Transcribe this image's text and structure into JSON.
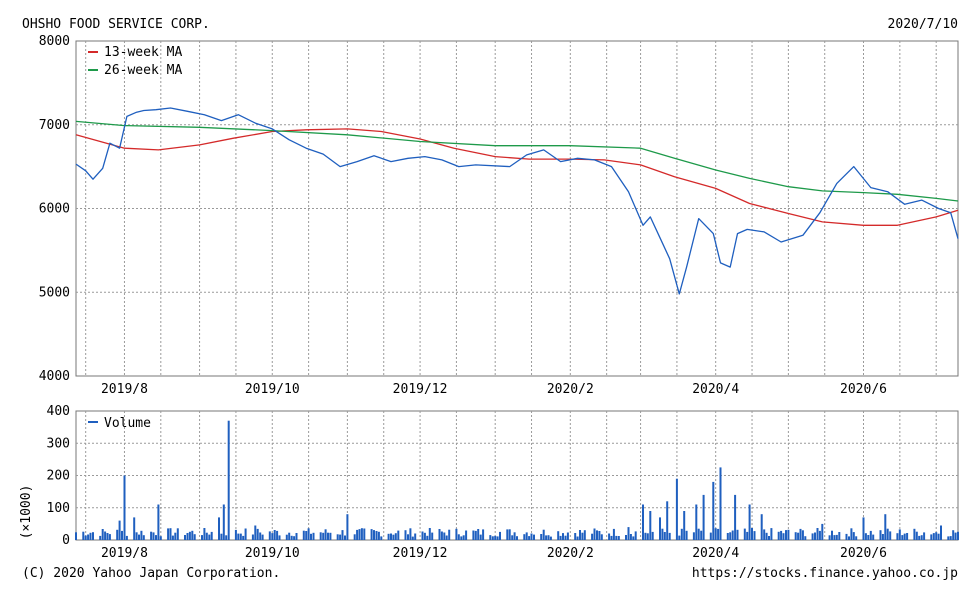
{
  "header": {
    "company": "OHSHO FOOD SERVICE CORP.",
    "date": "2020/7/10"
  },
  "footer": {
    "copyright": "(C) 2020 Yahoo Japan Corporation.",
    "url": "https://stocks.finance.yahoo.co.jp"
  },
  "colors": {
    "price": "#1f5fbf",
    "ma13": "#d42a2a",
    "ma26": "#1e9a4a",
    "volume": "#1f5fbf",
    "grid": "#9a9a9a"
  },
  "chart_data": [
    {
      "type": "line",
      "title": "OHSHO FOOD SERVICE CORP.",
      "ylim": [
        4000,
        8000
      ],
      "y_ticks": [
        "8000",
        "7000",
        "6000",
        "5000",
        "4000"
      ],
      "x_ticks": [
        "2019/8",
        "2019/10",
        "2019/12",
        "2020/2",
        "2020/4",
        "2020/6"
      ],
      "x_range": [
        "2019-07-12",
        "2020-07-10"
      ],
      "grid": true,
      "legend": "top-left",
      "series": [
        {
          "name": "13-week MA",
          "x": [
            "2019-07-12",
            "2019-08-01",
            "2019-08-15",
            "2019-09-01",
            "2019-09-15",
            "2019-10-01",
            "2019-10-15",
            "2019-11-01",
            "2019-11-15",
            "2019-12-01",
            "2019-12-15",
            "2020-01-01",
            "2020-01-15",
            "2020-02-01",
            "2020-02-15",
            "2020-03-01",
            "2020-03-15",
            "2020-04-01",
            "2020-04-15",
            "2020-05-01",
            "2020-05-15",
            "2020-06-01",
            "2020-06-15",
            "2020-07-01",
            "2020-07-10"
          ],
          "values": [
            6880,
            6720,
            6700,
            6760,
            6840,
            6920,
            6940,
            6950,
            6920,
            6830,
            6720,
            6620,
            6590,
            6590,
            6580,
            6520,
            6380,
            6240,
            6060,
            5940,
            5840,
            5800,
            5800,
            5900,
            5980
          ]
        },
        {
          "name": "26-week MA",
          "x": [
            "2019-07-12",
            "2019-08-01",
            "2019-09-01",
            "2019-10-01",
            "2019-11-01",
            "2019-12-01",
            "2020-01-01",
            "2020-02-01",
            "2020-03-01",
            "2020-03-15",
            "2020-04-01",
            "2020-04-15",
            "2020-05-01",
            "2020-05-15",
            "2020-06-01",
            "2020-06-15",
            "2020-07-01",
            "2020-07-10"
          ],
          "values": [
            7040,
            6990,
            6970,
            6930,
            6880,
            6800,
            6750,
            6750,
            6720,
            6600,
            6460,
            6360,
            6260,
            6210,
            6190,
            6170,
            6120,
            6090
          ]
        },
        {
          "name": "",
          "x": [
            "2019-07-12",
            "2019-07-16",
            "2019-07-19",
            "2019-07-23",
            "2019-07-26",
            "2019-07-30",
            "2019-08-02",
            "2019-08-06",
            "2019-08-09",
            "2019-08-14",
            "2019-08-20",
            "2019-08-27",
            "2019-09-03",
            "2019-09-10",
            "2019-09-17",
            "2019-09-24",
            "2019-10-01",
            "2019-10-08",
            "2019-10-15",
            "2019-10-22",
            "2019-10-29",
            "2019-11-05",
            "2019-11-12",
            "2019-11-19",
            "2019-11-26",
            "2019-12-03",
            "2019-12-10",
            "2019-12-17",
            "2019-12-24",
            "2020-01-07",
            "2020-01-14",
            "2020-01-21",
            "2020-01-28",
            "2020-02-04",
            "2020-02-11",
            "2020-02-18",
            "2020-02-25",
            "2020-03-02",
            "2020-03-05",
            "2020-03-09",
            "2020-03-13",
            "2020-03-17",
            "2020-03-20",
            "2020-03-25",
            "2020-03-31",
            "2020-04-03",
            "2020-04-07",
            "2020-04-10",
            "2020-04-14",
            "2020-04-21",
            "2020-04-28",
            "2020-05-07",
            "2020-05-14",
            "2020-05-21",
            "2020-05-28",
            "2020-06-04",
            "2020-06-11",
            "2020-06-18",
            "2020-06-25",
            "2020-07-02",
            "2020-07-07",
            "2020-07-10"
          ],
          "values": [
            6530,
            6450,
            6350,
            6480,
            6780,
            6720,
            7100,
            7150,
            7170,
            7180,
            7200,
            7160,
            7120,
            7050,
            7120,
            7020,
            6950,
            6820,
            6720,
            6650,
            6500,
            6560,
            6630,
            6560,
            6600,
            6620,
            6580,
            6500,
            6520,
            6500,
            6640,
            6700,
            6560,
            6600,
            6580,
            6500,
            6200,
            5800,
            5900,
            5650,
            5400,
            4980,
            5300,
            5880,
            5700,
            5350,
            5300,
            5700,
            5750,
            5720,
            5600,
            5680,
            5950,
            6300,
            6500,
            6250,
            6200,
            6050,
            6100,
            6000,
            5950,
            5640
          ]
        }
      ]
    },
    {
      "type": "bar",
      "ylabel": "(×1000)",
      "ylim": [
        0,
        400
      ],
      "y_ticks": [
        "400",
        "300",
        "200",
        "100",
        "0"
      ],
      "x_ticks": [
        "2019/8",
        "2019/10",
        "2019/12",
        "2020/2",
        "2020/4",
        "2020/6"
      ],
      "x_range": [
        "2019-07-12",
        "2020-07-10"
      ],
      "grid": true,
      "legend": "top-left",
      "series": [
        {
          "name": "Volume",
          "x": [
            "2019-07-30",
            "2019-08-01",
            "2019-08-05",
            "2019-08-15",
            "2019-09-09",
            "2019-09-11",
            "2019-09-13",
            "2019-09-24",
            "2019-11-01",
            "2020-02-25",
            "2020-03-02",
            "2020-03-05",
            "2020-03-09",
            "2020-03-12",
            "2020-03-16",
            "2020-03-19",
            "2020-03-24",
            "2020-03-27",
            "2020-03-31",
            "2020-04-03",
            "2020-04-09",
            "2020-04-15",
            "2020-04-20",
            "2020-05-15",
            "2020-06-01",
            "2020-06-10",
            "2020-07-03"
          ],
          "values": [
            60,
            200,
            70,
            110,
            70,
            110,
            370,
            45,
            80,
            40,
            110,
            90,
            70,
            120,
            190,
            90,
            110,
            140,
            180,
            225,
            140,
            110,
            80,
            50,
            70,
            80,
            45
          ],
          "baseline": 30
        }
      ]
    }
  ]
}
